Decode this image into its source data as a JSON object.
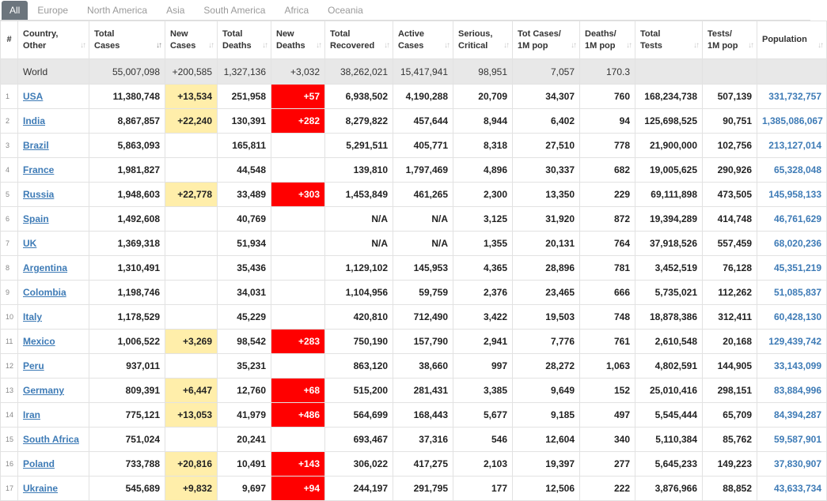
{
  "tabs": [
    "All",
    "Europe",
    "North America",
    "Asia",
    "South America",
    "Africa",
    "Oceania"
  ],
  "columns": [
    {
      "l1": "#",
      "l2": ""
    },
    {
      "l1": "Country,",
      "l2": "Other"
    },
    {
      "l1": "Total",
      "l2": "Cases"
    },
    {
      "l1": "New",
      "l2": "Cases"
    },
    {
      "l1": "Total",
      "l2": "Deaths"
    },
    {
      "l1": "New",
      "l2": "Deaths"
    },
    {
      "l1": "Total",
      "l2": "Recovered"
    },
    {
      "l1": "Active",
      "l2": "Cases"
    },
    {
      "l1": "Serious,",
      "l2": "Critical"
    },
    {
      "l1": "Tot Cases/",
      "l2": "1M pop"
    },
    {
      "l1": "Deaths/",
      "l2": "1M pop"
    },
    {
      "l1": "Total",
      "l2": "Tests"
    },
    {
      "l1": "Tests/",
      "l2": "1M pop"
    },
    {
      "l1": "Population",
      "l2": ""
    }
  ],
  "world": [
    "",
    "World",
    "55,007,098",
    "+200,585",
    "1,327,136",
    "+3,032",
    "38,262,021",
    "15,417,941",
    "98,951",
    "7,057",
    "170.3",
    "",
    "",
    ""
  ],
  "rows": [
    [
      "1",
      "USA",
      "11,380,748",
      "+13,534",
      "251,958",
      "+57",
      "6,938,502",
      "4,190,288",
      "20,709",
      "34,307",
      "760",
      "168,234,738",
      "507,139",
      "331,732,757"
    ],
    [
      "2",
      "India",
      "8,867,857",
      "+22,240",
      "130,391",
      "+282",
      "8,279,822",
      "457,644",
      "8,944",
      "6,402",
      "94",
      "125,698,525",
      "90,751",
      "1,385,086,067"
    ],
    [
      "3",
      "Brazil",
      "5,863,093",
      "",
      "165,811",
      "",
      "5,291,511",
      "405,771",
      "8,318",
      "27,510",
      "778",
      "21,900,000",
      "102,756",
      "213,127,014"
    ],
    [
      "4",
      "France",
      "1,981,827",
      "",
      "44,548",
      "",
      "139,810",
      "1,797,469",
      "4,896",
      "30,337",
      "682",
      "19,005,625",
      "290,926",
      "65,328,048"
    ],
    [
      "5",
      "Russia",
      "1,948,603",
      "+22,778",
      "33,489",
      "+303",
      "1,453,849",
      "461,265",
      "2,300",
      "13,350",
      "229",
      "69,111,898",
      "473,505",
      "145,958,133"
    ],
    [
      "6",
      "Spain",
      "1,492,608",
      "",
      "40,769",
      "",
      "N/A",
      "N/A",
      "3,125",
      "31,920",
      "872",
      "19,394,289",
      "414,748",
      "46,761,629"
    ],
    [
      "7",
      "UK",
      "1,369,318",
      "",
      "51,934",
      "",
      "N/A",
      "N/A",
      "1,355",
      "20,131",
      "764",
      "37,918,526",
      "557,459",
      "68,020,236"
    ],
    [
      "8",
      "Argentina",
      "1,310,491",
      "",
      "35,436",
      "",
      "1,129,102",
      "145,953",
      "4,365",
      "28,896",
      "781",
      "3,452,519",
      "76,128",
      "45,351,219"
    ],
    [
      "9",
      "Colombia",
      "1,198,746",
      "",
      "34,031",
      "",
      "1,104,956",
      "59,759",
      "2,376",
      "23,465",
      "666",
      "5,735,021",
      "112,262",
      "51,085,837"
    ],
    [
      "10",
      "Italy",
      "1,178,529",
      "",
      "45,229",
      "",
      "420,810",
      "712,490",
      "3,422",
      "19,503",
      "748",
      "18,878,386",
      "312,411",
      "60,428,130"
    ],
    [
      "11",
      "Mexico",
      "1,006,522",
      "+3,269",
      "98,542",
      "+283",
      "750,190",
      "157,790",
      "2,941",
      "7,776",
      "761",
      "2,610,548",
      "20,168",
      "129,439,742"
    ],
    [
      "12",
      "Peru",
      "937,011",
      "",
      "35,231",
      "",
      "863,120",
      "38,660",
      "997",
      "28,272",
      "1,063",
      "4,802,591",
      "144,905",
      "33,143,099"
    ],
    [
      "13",
      "Germany",
      "809,391",
      "+6,447",
      "12,760",
      "+68",
      "515,200",
      "281,431",
      "3,385",
      "9,649",
      "152",
      "25,010,416",
      "298,151",
      "83,884,996"
    ],
    [
      "14",
      "Iran",
      "775,121",
      "+13,053",
      "41,979",
      "+486",
      "564,699",
      "168,443",
      "5,677",
      "9,185",
      "497",
      "5,545,444",
      "65,709",
      "84,394,287"
    ],
    [
      "15",
      "South Africa",
      "751,024",
      "",
      "20,241",
      "",
      "693,467",
      "37,316",
      "546",
      "12,604",
      "340",
      "5,110,384",
      "85,762",
      "59,587,901"
    ],
    [
      "16",
      "Poland",
      "733,788",
      "+20,816",
      "10,491",
      "+143",
      "306,022",
      "417,275",
      "2,103",
      "19,397",
      "277",
      "5,645,233",
      "149,223",
      "37,830,907"
    ],
    [
      "17",
      "Ukraine",
      "545,689",
      "+9,832",
      "9,697",
      "+94",
      "244,197",
      "291,795",
      "177",
      "12,506",
      "222",
      "3,876,966",
      "88,852",
      "43,633,734"
    ]
  ],
  "colors": {
    "new_cases_bg": "#ffeeaa",
    "new_deaths_bg": "#ff0000",
    "link": "#3e7bb6",
    "world_bg": "#e8e8e8"
  }
}
